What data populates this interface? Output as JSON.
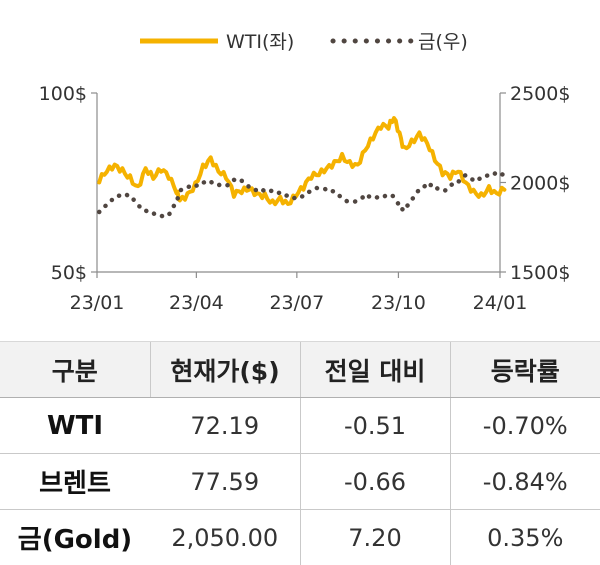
{
  "chart_data": {
    "type": "line",
    "legend": {
      "placement": "top-center"
    },
    "grid": false,
    "x_axis": {
      "range": [
        "2023-01",
        "2024-01"
      ],
      "tick_labels": [
        "23/01",
        "23/04",
        "23/07",
        "23/10",
        "24/01"
      ]
    },
    "y_left": {
      "range": [
        50,
        100
      ],
      "tick_labels": [
        "100$",
        "50$"
      ]
    },
    "y_right": {
      "range": [
        1500,
        2500
      ],
      "tick_labels": [
        "2500$",
        "2000$",
        "1500$"
      ]
    },
    "series": [
      {
        "name": "WTI(좌)",
        "axis": "left",
        "color": "#F5B200",
        "style": "solid",
        "x": [
          "2023-01-03",
          "2023-01-10",
          "2023-01-17",
          "2023-01-24",
          "2023-01-31",
          "2023-02-07",
          "2023-02-14",
          "2023-02-21",
          "2023-02-28",
          "2023-03-07",
          "2023-03-14",
          "2023-03-17",
          "2023-03-24",
          "2023-03-31",
          "2023-04-07",
          "2023-04-14",
          "2023-04-21",
          "2023-04-28",
          "2023-05-05",
          "2023-05-12",
          "2023-05-19",
          "2023-05-26",
          "2023-06-02",
          "2023-06-09",
          "2023-06-16",
          "2023-06-23",
          "2023-06-30",
          "2023-07-07",
          "2023-07-14",
          "2023-07-21",
          "2023-07-28",
          "2023-08-04",
          "2023-08-11",
          "2023-08-18",
          "2023-08-25",
          "2023-09-01",
          "2023-09-08",
          "2023-09-15",
          "2023-09-22",
          "2023-09-27",
          "2023-10-02",
          "2023-10-06",
          "2023-10-13",
          "2023-10-20",
          "2023-10-27",
          "2023-11-03",
          "2023-11-10",
          "2023-11-17",
          "2023-11-24",
          "2023-12-01",
          "2023-12-08",
          "2023-12-15",
          "2023-12-22",
          "2023-12-29",
          "2024-01-05"
        ],
        "values": [
          75,
          78,
          80,
          79,
          77,
          74,
          79,
          76,
          78,
          76,
          72,
          70,
          72,
          75,
          80,
          82,
          78,
          76,
          71,
          72,
          73,
          72,
          72,
          70,
          71,
          69,
          71,
          73,
          76,
          77,
          79,
          81,
          83,
          81,
          80,
          84,
          87,
          90,
          90,
          93,
          89,
          85,
          87,
          89,
          86,
          81,
          77,
          76,
          78,
          75,
          73,
          72,
          74,
          72,
          73
        ]
      },
      {
        "name": "금(우)",
        "axis": "right",
        "color": "#504641",
        "style": "dotted",
        "x": [
          "2023-01-03",
          "2023-01-10",
          "2023-01-17",
          "2023-01-24",
          "2023-01-31",
          "2023-02-07",
          "2023-02-14",
          "2023-02-21",
          "2023-02-28",
          "2023-03-07",
          "2023-03-14",
          "2023-03-17",
          "2023-03-24",
          "2023-03-31",
          "2023-04-07",
          "2023-04-14",
          "2023-04-21",
          "2023-04-28",
          "2023-05-05",
          "2023-05-12",
          "2023-05-19",
          "2023-05-26",
          "2023-06-02",
          "2023-06-09",
          "2023-06-16",
          "2023-06-23",
          "2023-06-30",
          "2023-07-07",
          "2023-07-14",
          "2023-07-21",
          "2023-07-28",
          "2023-08-04",
          "2023-08-11",
          "2023-08-18",
          "2023-08-25",
          "2023-09-01",
          "2023-09-08",
          "2023-09-15",
          "2023-09-22",
          "2023-09-27",
          "2023-10-02",
          "2023-10-06",
          "2023-10-13",
          "2023-10-20",
          "2023-10-27",
          "2023-11-03",
          "2023-11-10",
          "2023-11-17",
          "2023-11-24",
          "2023-12-01",
          "2023-12-08",
          "2023-12-15",
          "2023-12-22",
          "2023-12-29",
          "2024-01-05"
        ],
        "values": [
          1835,
          1870,
          1905,
          1930,
          1930,
          1875,
          1845,
          1830,
          1815,
          1820,
          1880,
          1950,
          1970,
          1975,
          2000,
          2005,
          1990,
          1985,
          2015,
          2010,
          1970,
          1950,
          1955,
          1955,
          1945,
          1930,
          1915,
          1925,
          1950,
          1965,
          1955,
          1945,
          1915,
          1890,
          1910,
          1935,
          1925,
          1915,
          1925,
          1915,
          1860,
          1840,
          1900,
          1970,
          2000,
          1990,
          1950,
          1985,
          2000,
          2040,
          2010,
          2025,
          2050,
          2060,
          2050
        ]
      }
    ]
  },
  "table": {
    "headers": [
      "구분",
      "현재가($)",
      "전일 대비",
      "등락률"
    ],
    "rows": [
      {
        "label": "WTI",
        "price": "72.19",
        "change": "-0.51",
        "rate": "-0.70%"
      },
      {
        "label": "브렌트",
        "price": "77.59",
        "change": "-0.66",
        "rate": "-0.84%"
      },
      {
        "label": "금(Gold)",
        "price": "2,050.00",
        "change": "7.20",
        "rate": "0.35%"
      }
    ]
  }
}
